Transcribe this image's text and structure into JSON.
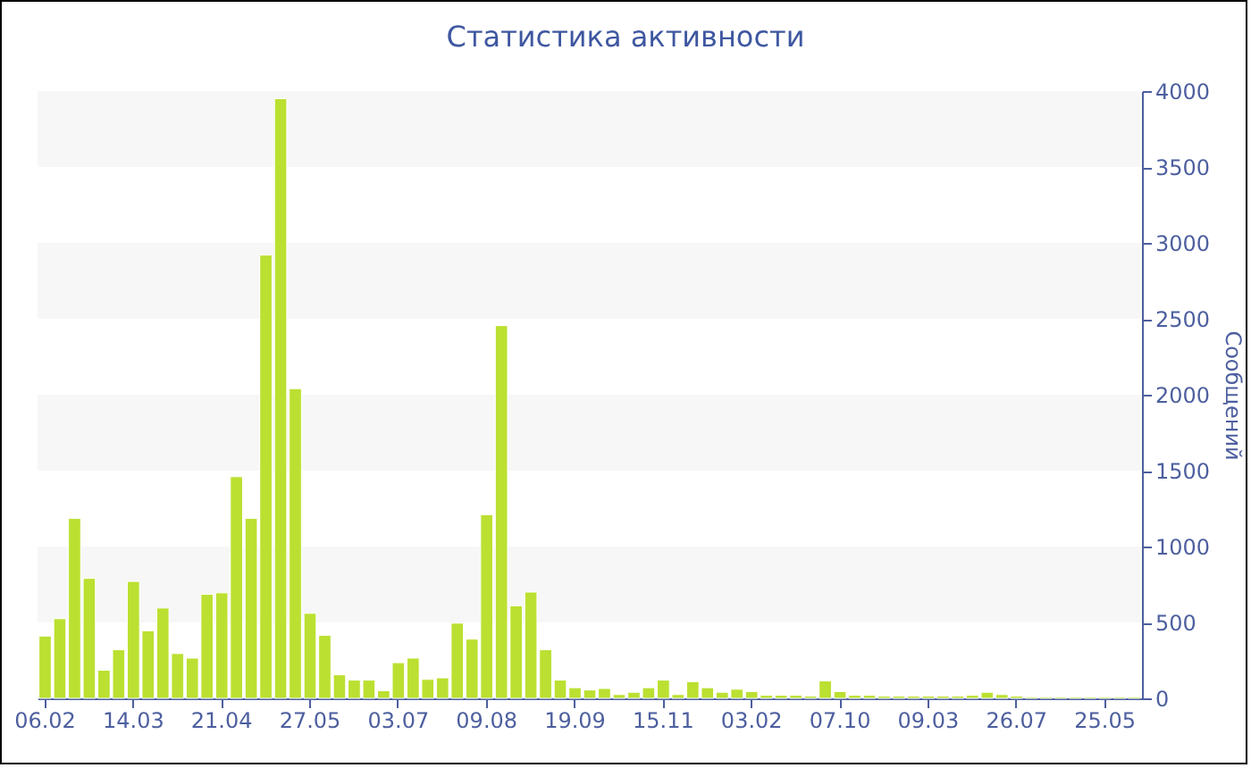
{
  "chart_data": {
    "type": "bar",
    "title": "Статистика активности",
    "ylabel": "Сообщений",
    "categories": [
      "06.02",
      null,
      null,
      null,
      null,
      null,
      "14.03",
      null,
      null,
      null,
      null,
      null,
      "21.04",
      null,
      null,
      null,
      null,
      null,
      "27.05",
      null,
      null,
      null,
      null,
      null,
      "03.07",
      null,
      null,
      null,
      null,
      null,
      "09.08",
      null,
      null,
      null,
      null,
      null,
      "19.09",
      null,
      null,
      null,
      null,
      null,
      "15.11",
      null,
      null,
      null,
      null,
      null,
      "03.02",
      null,
      null,
      null,
      null,
      null,
      "07.10",
      null,
      null,
      null,
      null,
      null,
      "09.03",
      null,
      null,
      null,
      null,
      null,
      "26.07",
      null,
      null,
      null,
      null,
      null,
      "25.05",
      null,
      null
    ],
    "values": [
      410,
      525,
      1185,
      790,
      185,
      320,
      770,
      445,
      595,
      295,
      265,
      685,
      695,
      1460,
      1185,
      2920,
      3950,
      2040,
      560,
      415,
      155,
      120,
      120,
      50,
      235,
      265,
      125,
      135,
      495,
      390,
      1210,
      2455,
      610,
      700,
      320,
      120,
      70,
      55,
      65,
      25,
      40,
      70,
      120,
      25,
      110,
      70,
      40,
      60,
      45,
      20,
      20,
      20,
      15,
      115,
      45,
      20,
      20,
      15,
      15,
      15,
      15,
      15,
      15,
      20,
      40,
      25,
      15,
      10,
      10,
      10,
      10,
      10,
      10,
      10,
      10
    ],
    "color": "#bbe031",
    "ylim": [
      0,
      4000
    ],
    "yticks": [
      0,
      500,
      1000,
      1500,
      2000,
      2500,
      3000,
      3500,
      4000
    ],
    "bands": [
      {
        "axis": "y",
        "from": 500,
        "to": 1000,
        "color": "#f7f7f7"
      },
      {
        "axis": "y",
        "from": 1500,
        "to": 2000,
        "color": "#f7f7f7"
      },
      {
        "axis": "y",
        "from": 2500,
        "to": 3000,
        "color": "#f7f7f7"
      },
      {
        "axis": "y",
        "from": 3500,
        "to": 4000,
        "color": "#f7f7f7"
      }
    ]
  }
}
